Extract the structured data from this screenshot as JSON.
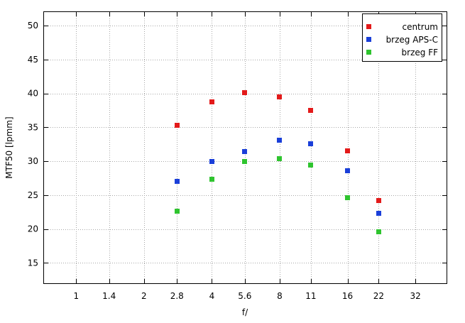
{
  "chart_data": {
    "type": "scatter",
    "xlabel": "f/",
    "ylabel": "MTF50 [lpmm]",
    "x_scale": "log",
    "x_ticks": [
      "1",
      "1.4",
      "2",
      "2.8",
      "4",
      "5.6",
      "8",
      "11",
      "16",
      "22",
      "32"
    ],
    "x_tick_values": [
      1,
      1.4,
      2,
      2.8,
      4,
      5.6,
      8,
      11,
      16,
      22,
      32
    ],
    "xlim": [
      0.72,
      44
    ],
    "ylim": [
      12,
      52
    ],
    "y_ticks": [
      15,
      20,
      25,
      30,
      35,
      40,
      45,
      50
    ],
    "grid": true,
    "legend_position": "top-right",
    "series": [
      {
        "name": "centrum",
        "color": "#e31a1a",
        "x": [
          2.8,
          4,
          5.6,
          8,
          11,
          16,
          22
        ],
        "y": [
          35.3,
          38.8,
          40.1,
          39.5,
          37.5,
          31.5,
          24.2
        ]
      },
      {
        "name": "brzeg APS-C",
        "color": "#1a3fd9",
        "x": [
          2.8,
          4,
          5.6,
          8,
          11,
          16,
          22
        ],
        "y": [
          27.0,
          30.0,
          31.4,
          33.1,
          32.6,
          28.6,
          22.3
        ]
      },
      {
        "name": "brzeg FF",
        "color": "#2fc42f",
        "x": [
          2.8,
          4,
          5.6,
          8,
          11,
          16,
          22
        ],
        "y": [
          22.6,
          27.3,
          30.0,
          30.4,
          29.4,
          24.6,
          19.6
        ]
      }
    ]
  }
}
